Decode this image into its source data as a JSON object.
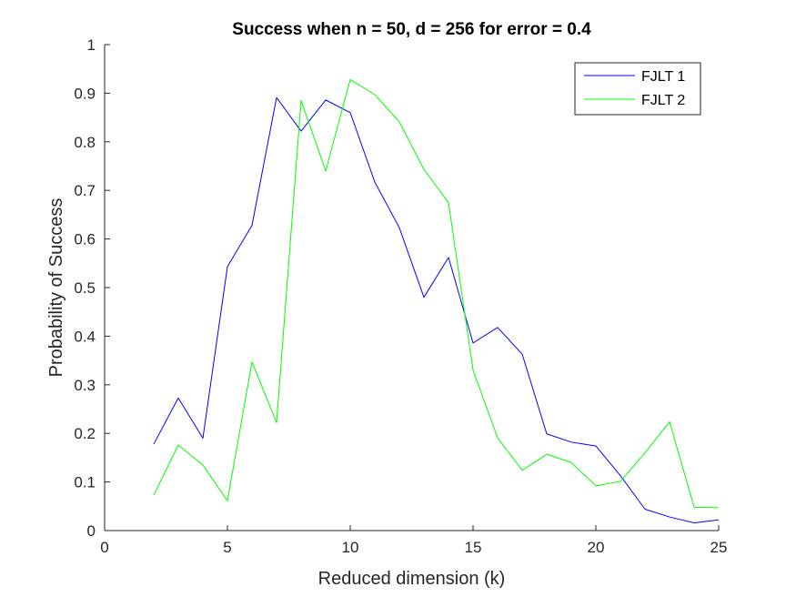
{
  "chart_data": {
    "type": "line",
    "title": "Success when n = 50, d = 256 for error = 0.4",
    "xlabel": "Reduced dimension (k)",
    "ylabel": "Probability of Success",
    "xlim": [
      0,
      25
    ],
    "ylim": [
      0,
      1
    ],
    "xticks": [
      0,
      5,
      10,
      15,
      20,
      25
    ],
    "xtick_labels": [
      "0",
      "5",
      "10",
      "15",
      "20",
      "25"
    ],
    "yticks": [
      0,
      0.1,
      0.2,
      0.3,
      0.4,
      0.5,
      0.6,
      0.7,
      0.8,
      0.9,
      1
    ],
    "ytick_labels": [
      "0",
      "0.1",
      "0.2",
      "0.3",
      "0.4",
      "0.5",
      "0.6",
      "0.7",
      "0.8",
      "0.9",
      "1"
    ],
    "grid": false,
    "legend_position": "top-right",
    "x": [
      2,
      3,
      4,
      5,
      6,
      7,
      8,
      9,
      10,
      11,
      12,
      13,
      14,
      15,
      16,
      17,
      18,
      19,
      20,
      21,
      22,
      23,
      24,
      25
    ],
    "series": [
      {
        "name": "FJLT 1",
        "color": "#0000ff",
        "values": [
          0.178,
          0.273,
          0.19,
          0.543,
          0.628,
          0.891,
          0.822,
          0.886,
          0.86,
          0.717,
          0.623,
          0.48,
          0.562,
          0.386,
          0.418,
          0.363,
          0.199,
          0.182,
          0.174,
          0.113,
          0.044,
          0.028,
          0.016,
          0.022
        ]
      },
      {
        "name": "FJLT 2",
        "color": "#00ff00",
        "values": [
          0.073,
          0.176,
          0.135,
          0.061,
          0.347,
          0.222,
          0.885,
          0.74,
          0.928,
          0.897,
          0.841,
          0.743,
          0.675,
          0.33,
          0.191,
          0.124,
          0.157,
          0.14,
          0.092,
          0.101,
          0.16,
          0.224,
          0.048,
          0.047
        ]
      }
    ]
  }
}
